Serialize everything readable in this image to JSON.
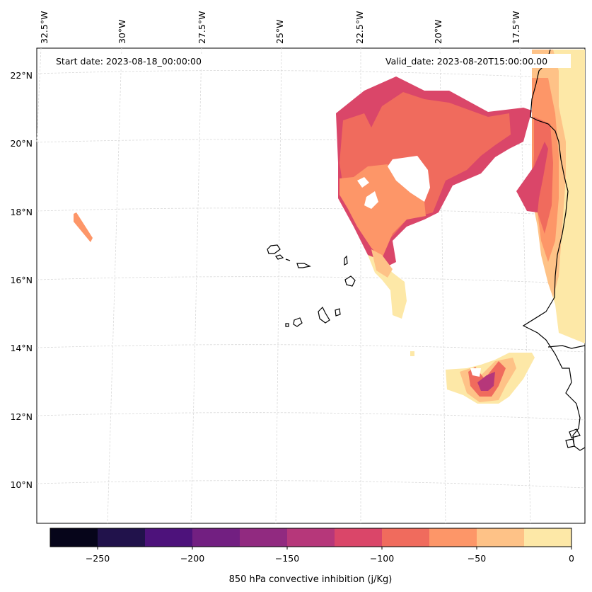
{
  "map": {
    "start_date": "Start date: 2023-08-18_00:00:00",
    "valid_date": "Valid_date: 2023-08-20T15:00:00.00",
    "lon_labels": [
      "32.5°W",
      "30°W",
      "27.5°W",
      "25°W",
      "22.5°W",
      "20°W",
      "17.5°W"
    ],
    "lat_labels": [
      "22°N",
      "20°N",
      "18°N",
      "16°N",
      "14°N",
      "12°N",
      "10°N"
    ]
  },
  "colorbar": {
    "title": "850 hPa convective inhibition (j/Kg)",
    "tick_labels": [
      "−250",
      "−200",
      "−150",
      "−100",
      "−50",
      "0"
    ],
    "bounds": [
      -275,
      -250,
      -225,
      -200,
      -175,
      -150,
      -125,
      -100,
      -75,
      -50,
      -25,
      0
    ],
    "colors": [
      "#06051a",
      "#21124b",
      "#4d127b",
      "#721f81",
      "#912a80",
      "#b6377a",
      "#da4669",
      "#f06b5d",
      "#fd9668",
      "#fec287",
      "#fde8a7"
    ]
  }
}
